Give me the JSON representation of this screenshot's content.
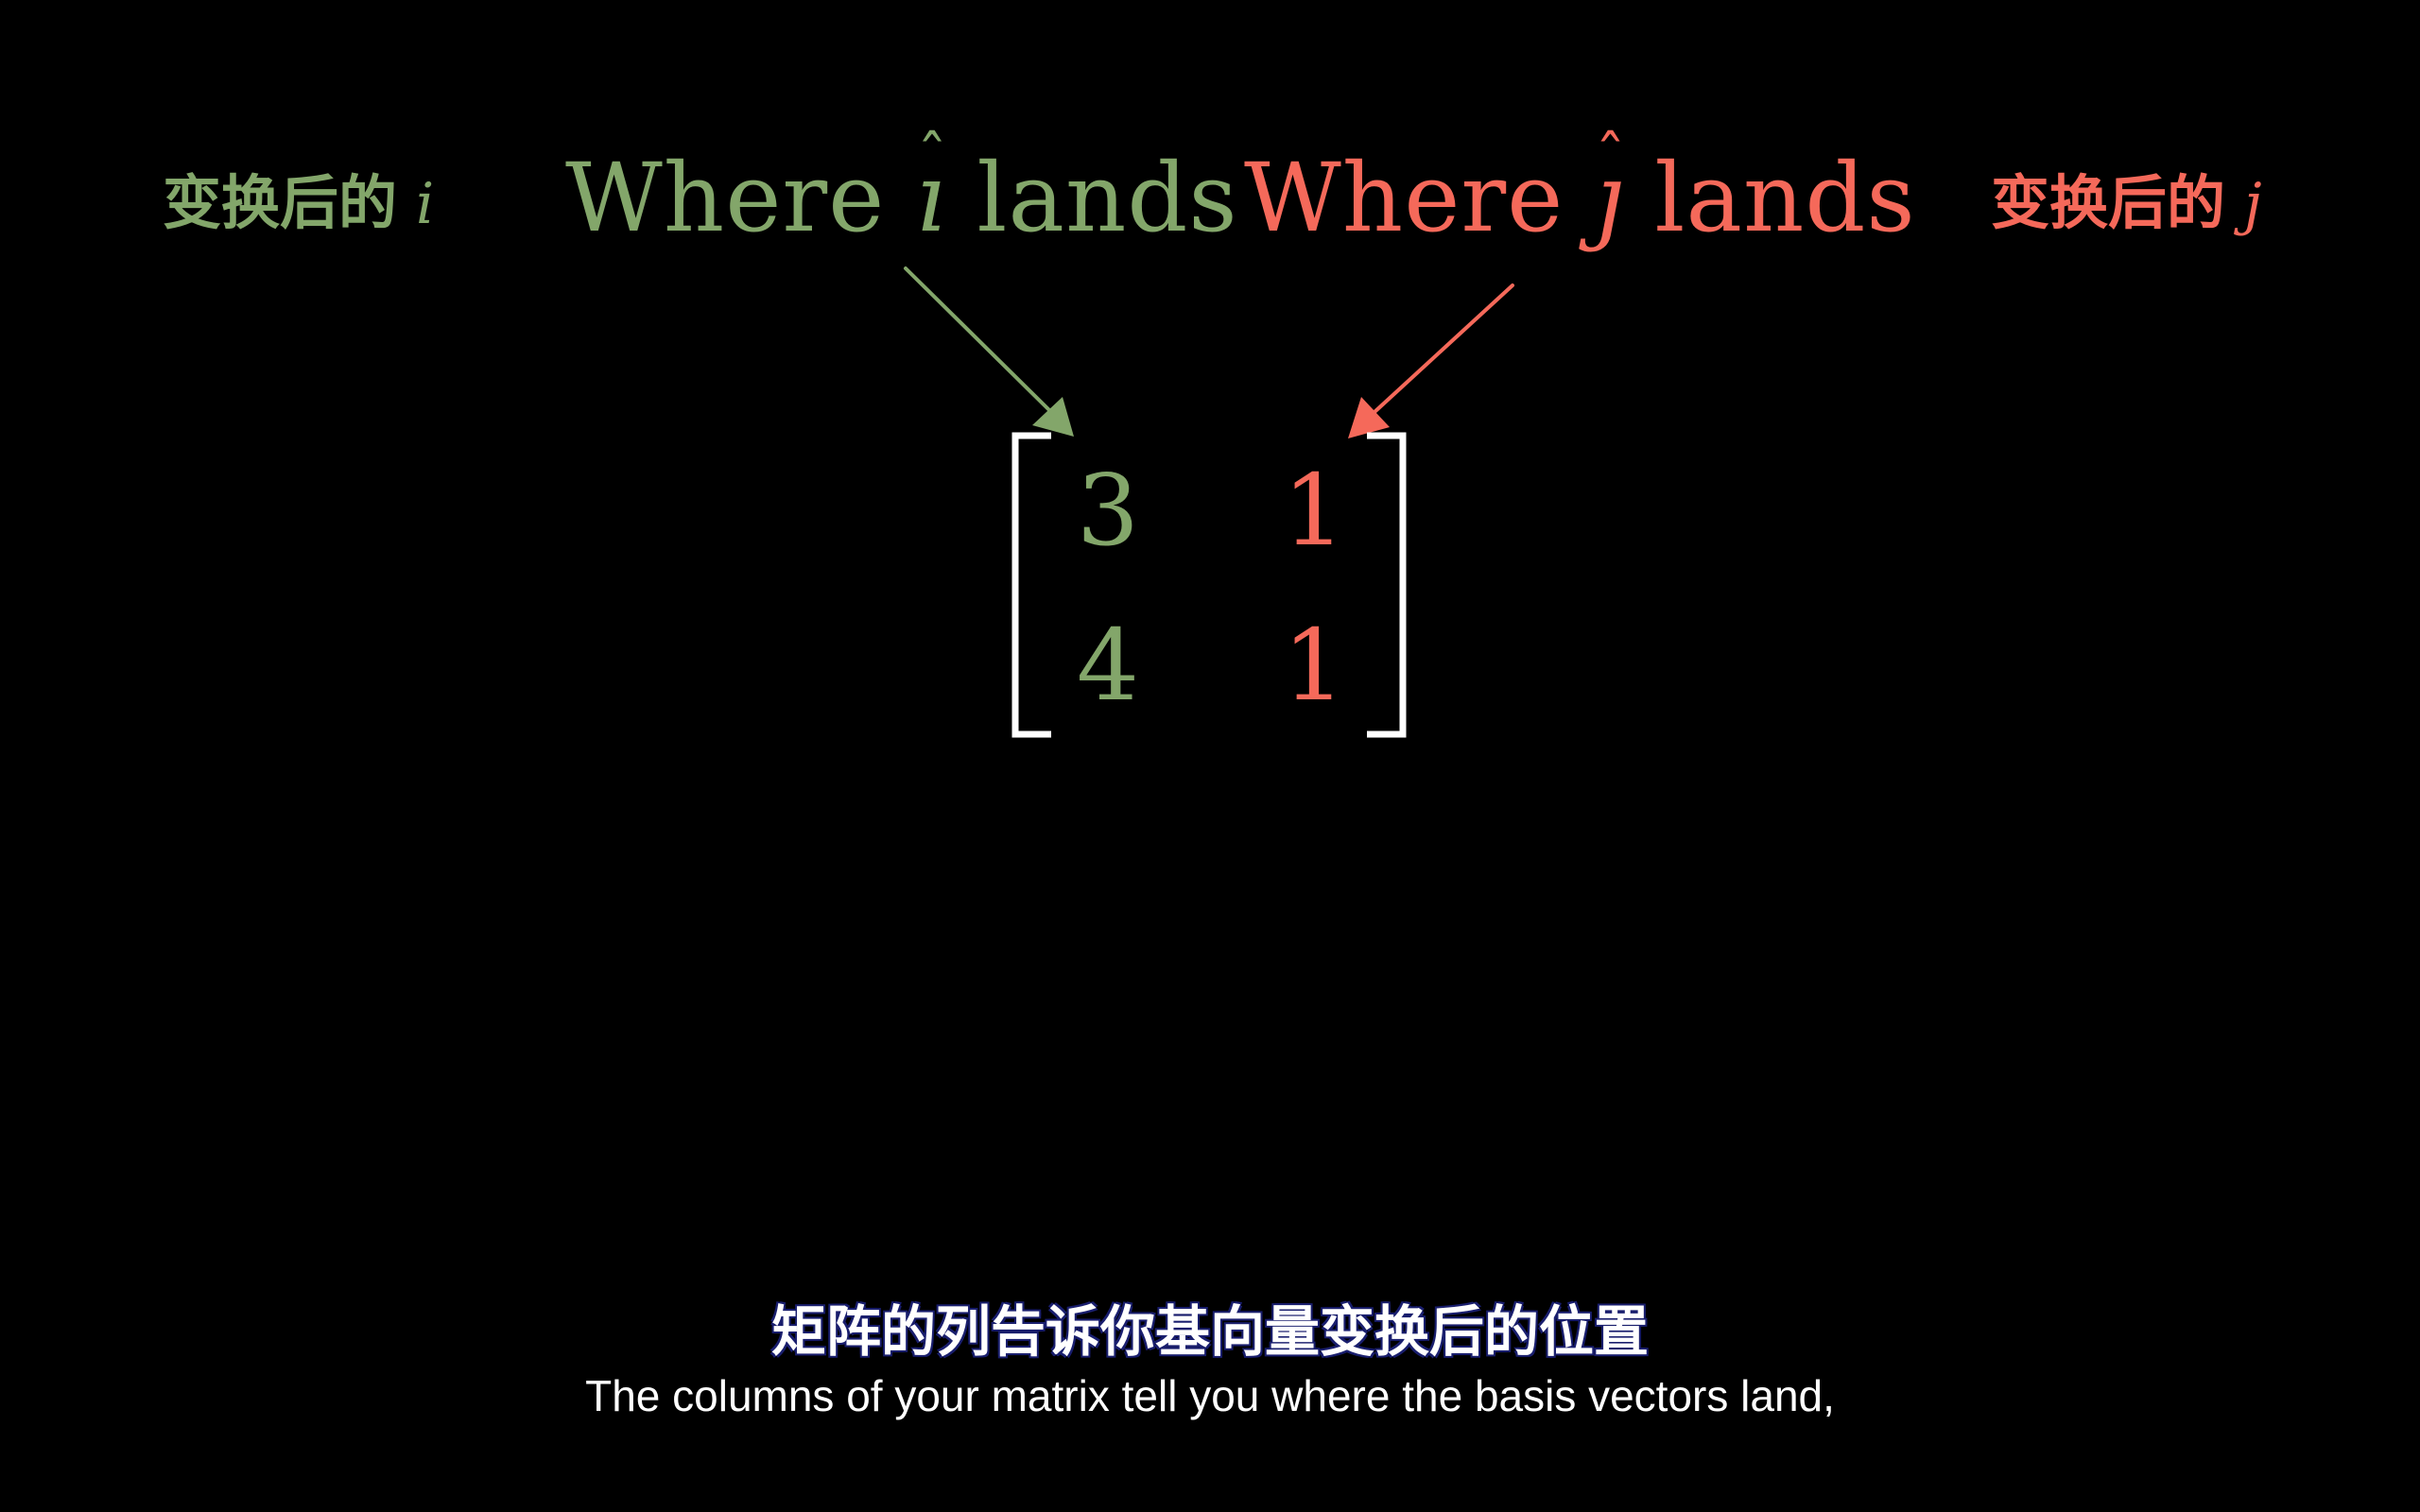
{
  "colors": {
    "i_hat": "#83a66a",
    "j_hat": "#f5695a",
    "bracket": "#ffffff",
    "background": "#000000"
  },
  "labels": {
    "left_cn": "变换后的",
    "left_var": "i",
    "right_cn": "变换后的",
    "right_var": "j"
  },
  "titles": {
    "i_prefix": "Where",
    "i_var": "ı",
    "i_hat": "ˆ",
    "i_suffix": "lands",
    "j_prefix": "Where",
    "j_var": "ȷ",
    "j_hat": "ˆ",
    "j_suffix": "lands"
  },
  "matrix": {
    "a11": "3",
    "a12": "1",
    "a21": "4",
    "a22": "1"
  },
  "subtitle": {
    "cn": "矩阵的列告诉你基向量变换后的位置",
    "en": "The columns of your matrix tell you where the basis vectors land,"
  }
}
